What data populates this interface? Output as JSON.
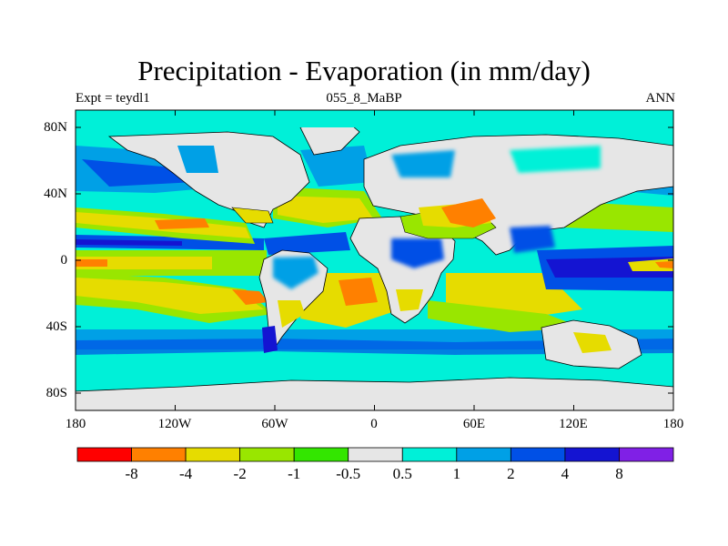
{
  "title": "Precipitation - Evaporation (in mm/day)",
  "subtitle_left": "Expt = teydl1",
  "subtitle_center": "055_8_MaBP",
  "subtitle_right": "ANN",
  "lat_ticks": [
    "80N",
    "40N",
    "0",
    "40S",
    "80S"
  ],
  "lon_ticks": [
    "180",
    "120W",
    "60W",
    "0",
    "60E",
    "120E",
    "180"
  ],
  "colorbar": {
    "colors": [
      "#ff0000",
      "#ff8000",
      "#e6dc00",
      "#99e600",
      "#33e600",
      "#e6e6e6",
      "#00f0d8",
      "#00a0e6",
      "#0050e6",
      "#1414d2",
      "#8020e6"
    ],
    "labels": [
      "-8",
      "-4",
      "-2",
      "-1",
      "-0.5",
      "0.5",
      "1",
      "2",
      "4",
      "8"
    ]
  }
}
